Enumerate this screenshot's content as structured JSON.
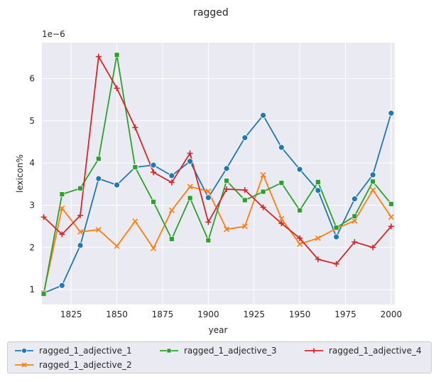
{
  "chart_data": {
    "type": "line",
    "title": "ragged",
    "xlabel": "year",
    "ylabel": "lexicon%",
    "y_scale_label": "1e−6",
    "xlim": [
      1809,
      2002
    ],
    "ylim": [
      0.65,
      6.85
    ],
    "x_ticks": [
      1825,
      1850,
      1875,
      1900,
      1925,
      1950,
      1975,
      2000
    ],
    "y_ticks": [
      1,
      2,
      3,
      4,
      5,
      6
    ],
    "grid": true,
    "legend_position": "bottom",
    "x": [
      1810,
      1820,
      1830,
      1840,
      1850,
      1860,
      1870,
      1880,
      1890,
      1900,
      1910,
      1920,
      1930,
      1940,
      1950,
      1960,
      1970,
      1980,
      1990,
      2000
    ],
    "series": [
      {
        "name": "ragged_1_adjective_1",
        "color": "#1f77b4",
        "marker": "circle",
        "values": [
          0.92,
          1.1,
          2.05,
          3.63,
          3.48,
          3.9,
          3.95,
          3.7,
          4.04,
          3.18,
          3.87,
          4.6,
          5.13,
          4.37,
          3.85,
          3.35,
          2.25,
          3.15,
          3.72,
          5.18
        ]
      },
      {
        "name": "ragged_1_adjective_2",
        "color": "#ff7f0e",
        "marker": "x",
        "values": [
          0.92,
          2.93,
          2.37,
          2.42,
          2.03,
          2.62,
          1.98,
          2.88,
          3.44,
          3.33,
          2.43,
          2.5,
          3.72,
          2.68,
          2.08,
          2.22,
          2.45,
          2.63,
          3.36,
          2.72
        ]
      },
      {
        "name": "ragged_1_adjective_3",
        "color": "#2ca02c",
        "marker": "square",
        "values": [
          0.9,
          3.26,
          3.4,
          4.1,
          6.56,
          3.9,
          3.08,
          2.2,
          3.17,
          2.17,
          3.58,
          3.12,
          3.32,
          3.53,
          2.88,
          3.55,
          2.47,
          2.74,
          3.56,
          3.03
        ]
      },
      {
        "name": "ragged_1_adjective_4",
        "color": "#d62728",
        "marker": "plus",
        "values": [
          2.72,
          2.31,
          2.76,
          6.52,
          5.77,
          4.84,
          3.78,
          3.54,
          4.23,
          2.6,
          3.38,
          3.36,
          2.95,
          2.57,
          2.22,
          1.72,
          1.61,
          2.13,
          2.0,
          2.5
        ]
      }
    ]
  }
}
